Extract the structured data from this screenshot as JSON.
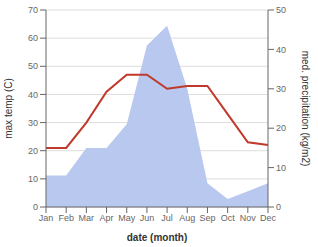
{
  "chart_data": {
    "type": "line",
    "xlabel": "date (month)",
    "ylabel": "max temp (C)",
    "y2label": "med. precipitation (kg/m2)",
    "categories": [
      "Jan",
      "Feb",
      "Mar",
      "Apr",
      "May",
      "Jun",
      "Jul",
      "Aug",
      "Sep",
      "Oct",
      "Nov",
      "Dec"
    ],
    "series": [
      {
        "type": "area",
        "axis": "y2",
        "color": "#b8c8ef",
        "values": [
          8,
          8,
          15,
          15,
          21,
          41,
          46,
          30,
          6,
          2,
          4,
          6
        ]
      },
      {
        "type": "line",
        "color": "#c0392b",
        "values": [
          21,
          21,
          30,
          41,
          47,
          47,
          42,
          43,
          43,
          33,
          23,
          22
        ]
      }
    ],
    "ylim": [
      0,
      70
    ],
    "yticks": [
      0,
      10,
      20,
      30,
      40,
      50,
      60,
      70
    ],
    "y2lim": [
      0,
      50
    ],
    "y2ticks": [
      0,
      10,
      20,
      30,
      40,
      50
    ],
    "grid": true
  }
}
